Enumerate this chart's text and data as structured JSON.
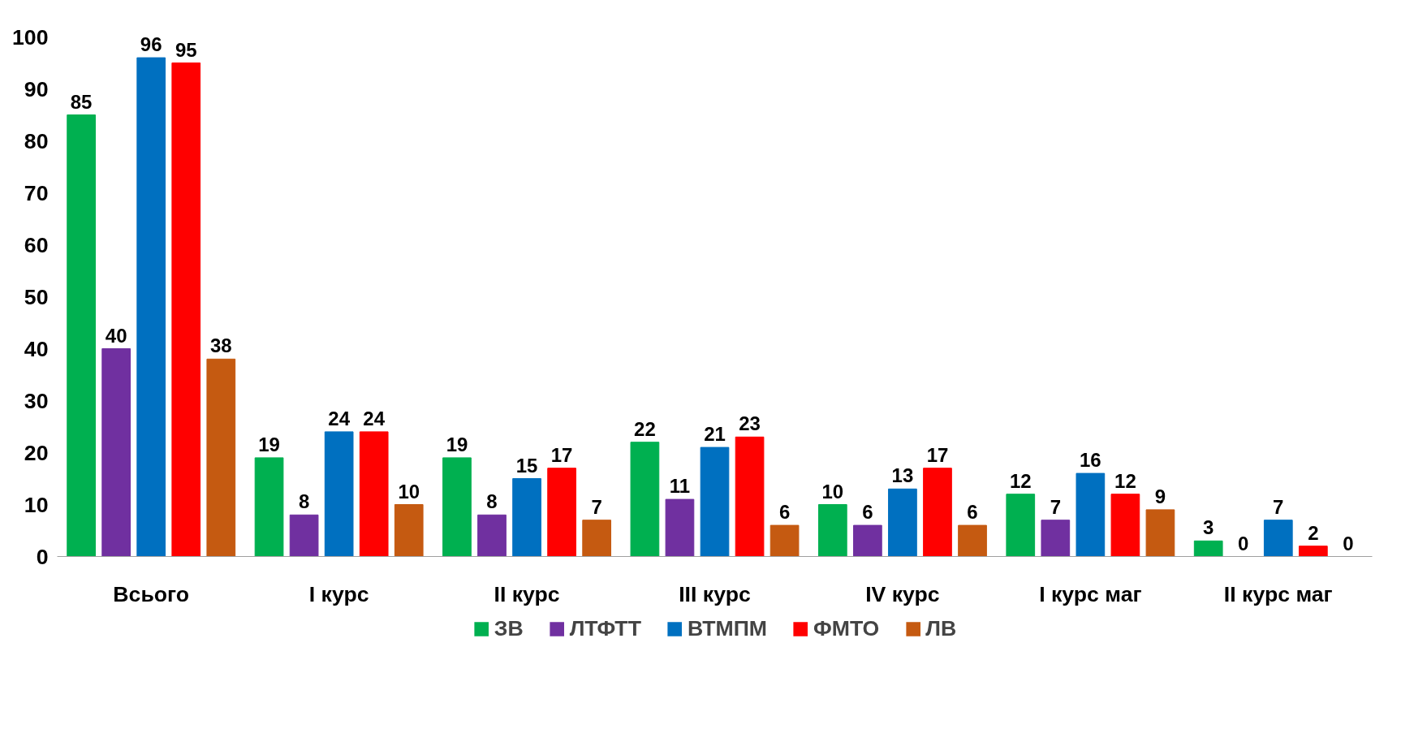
{
  "chart_data": {
    "type": "bar",
    "categories": [
      "Всього",
      "I курс",
      "II курс",
      "III курс",
      "IV курс",
      "I курс маг",
      "II курс маг"
    ],
    "series": [
      {
        "name": "ЗВ",
        "color": "#00b050",
        "values": [
          85,
          19,
          19,
          22,
          10,
          12,
          3
        ]
      },
      {
        "name": "ЛТФТТ",
        "color": "#7030a0",
        "values": [
          40,
          8,
          8,
          11,
          6,
          7,
          0
        ]
      },
      {
        "name": "ВТМПМ",
        "color": "#0070c0",
        "values": [
          96,
          24,
          15,
          21,
          13,
          16,
          7
        ]
      },
      {
        "name": "ФМТО",
        "color": "#ff0000",
        "values": [
          95,
          24,
          17,
          23,
          17,
          12,
          2
        ]
      },
      {
        "name": "ЛВ",
        "color": "#c55a11",
        "values": [
          38,
          10,
          7,
          6,
          6,
          9,
          0
        ]
      }
    ],
    "ylim": [
      0,
      100
    ],
    "yticks": [
      0,
      10,
      20,
      30,
      40,
      50,
      60,
      70,
      80,
      90,
      100
    ],
    "grid": false,
    "legend": "bottom",
    "data_labels": true
  }
}
